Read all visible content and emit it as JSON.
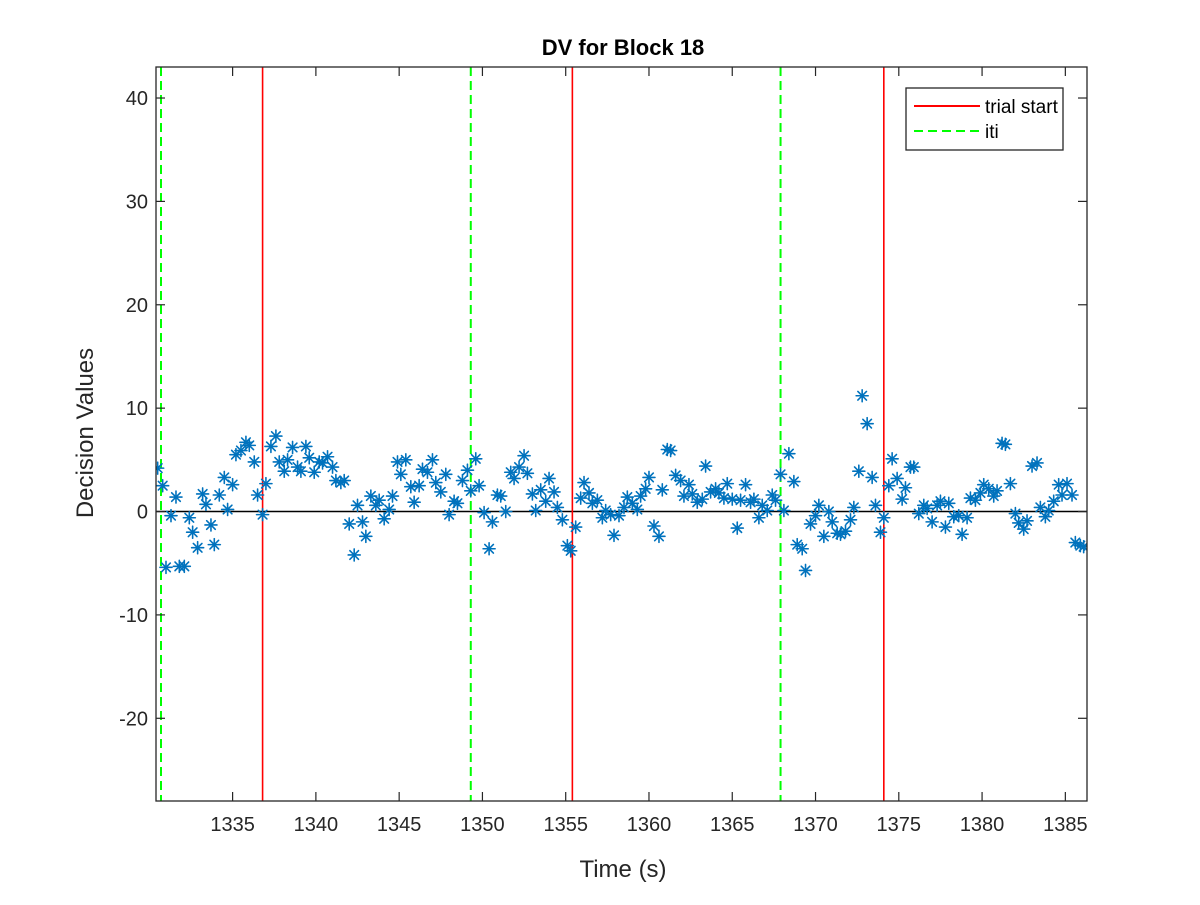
{
  "chart_data": {
    "type": "scatter",
    "title": "DV for Block 18",
    "xlabel": "Time (s)",
    "ylabel": "Decision Values",
    "xlim": [
      1330.4,
      1386.3
    ],
    "ylim": [
      -28,
      43
    ],
    "xticks": [
      1335,
      1340,
      1345,
      1350,
      1355,
      1360,
      1365,
      1370,
      1375,
      1380,
      1385
    ],
    "yticks": [
      -20,
      -10,
      0,
      10,
      20,
      30,
      40
    ],
    "grid": false,
    "legend_position": "top-right",
    "zero_line": 0,
    "colors": {
      "points": "#0072BD",
      "trial_start": "#ff0000",
      "iti": "#00ff00",
      "zero_line": "#000000"
    },
    "legend": [
      {
        "label": "trial start",
        "style": "solid",
        "color": "#ff0000"
      },
      {
        "label": "iti",
        "style": "dashed",
        "color": "#00ff00"
      }
    ],
    "trial_start_times": [
      1336.8,
      1355.4,
      1374.1
    ],
    "iti_times": [
      1330.7,
      1349.3,
      1367.9
    ],
    "series": [
      {
        "marker": "asterisk",
        "points": [
          [
            1330.5,
            4.2
          ],
          [
            1330.8,
            2.5
          ],
          [
            1331.0,
            -5.4
          ],
          [
            1331.3,
            -0.4
          ],
          [
            1331.6,
            1.4
          ],
          [
            1331.8,
            -5.3
          ],
          [
            1332.1,
            -5.3
          ],
          [
            1332.4,
            -0.6
          ],
          [
            1332.6,
            -2.0
          ],
          [
            1332.9,
            -3.5
          ],
          [
            1333.2,
            1.7
          ],
          [
            1333.4,
            0.7
          ],
          [
            1333.7,
            -1.3
          ],
          [
            1333.9,
            -3.2
          ],
          [
            1334.2,
            1.6
          ],
          [
            1334.5,
            3.3
          ],
          [
            1334.7,
            0.2
          ],
          [
            1335.0,
            2.6
          ],
          [
            1335.2,
            5.5
          ],
          [
            1335.5,
            5.9
          ],
          [
            1335.8,
            6.7
          ],
          [
            1336.0,
            6.4
          ],
          [
            1336.3,
            4.8
          ],
          [
            1336.5,
            1.6
          ],
          [
            1336.8,
            -0.3
          ],
          [
            1337.0,
            2.7
          ],
          [
            1337.3,
            6.3
          ],
          [
            1337.6,
            7.3
          ],
          [
            1337.8,
            4.8
          ],
          [
            1338.1,
            3.9
          ],
          [
            1338.3,
            5.0
          ],
          [
            1338.6,
            6.2
          ],
          [
            1338.9,
            4.3
          ],
          [
            1339.1,
            3.9
          ],
          [
            1339.4,
            6.3
          ],
          [
            1339.6,
            5.2
          ],
          [
            1339.9,
            3.8
          ],
          [
            1340.2,
            4.8
          ],
          [
            1340.4,
            4.7
          ],
          [
            1340.7,
            5.3
          ],
          [
            1341.0,
            4.3
          ],
          [
            1341.2,
            3.0
          ],
          [
            1341.5,
            2.8
          ],
          [
            1341.7,
            3.0
          ],
          [
            1342.0,
            -1.2
          ],
          [
            1342.3,
            -4.2
          ],
          [
            1342.5,
            0.6
          ],
          [
            1342.8,
            -1.0
          ],
          [
            1343.0,
            -2.4
          ],
          [
            1343.3,
            1.5
          ],
          [
            1343.6,
            0.6
          ],
          [
            1343.8,
            1.1
          ],
          [
            1344.1,
            -0.7
          ],
          [
            1344.4,
            0.2
          ],
          [
            1344.6,
            1.5
          ],
          [
            1344.9,
            4.8
          ],
          [
            1345.1,
            3.6
          ],
          [
            1345.4,
            5.0
          ],
          [
            1345.7,
            2.4
          ],
          [
            1345.9,
            0.9
          ],
          [
            1346.2,
            2.5
          ],
          [
            1346.4,
            4.1
          ],
          [
            1346.7,
            3.8
          ],
          [
            1347.0,
            5.0
          ],
          [
            1347.2,
            2.8
          ],
          [
            1347.5,
            1.9
          ],
          [
            1347.8,
            3.6
          ],
          [
            1348.0,
            -0.3
          ],
          [
            1348.3,
            1.0
          ],
          [
            1348.5,
            0.8
          ],
          [
            1348.8,
            3.0
          ],
          [
            1349.1,
            4.0
          ],
          [
            1349.3,
            2.0
          ],
          [
            1349.6,
            5.1
          ],
          [
            1349.8,
            2.5
          ],
          [
            1350.1,
            -0.1
          ],
          [
            1350.4,
            -3.6
          ],
          [
            1350.6,
            -1.0
          ],
          [
            1350.9,
            1.6
          ],
          [
            1351.1,
            1.5
          ],
          [
            1351.4,
            0.0
          ],
          [
            1351.7,
            3.8
          ],
          [
            1351.9,
            3.2
          ],
          [
            1352.2,
            4.3
          ],
          [
            1352.5,
            5.4
          ],
          [
            1352.7,
            3.7
          ],
          [
            1353.0,
            1.7
          ],
          [
            1353.2,
            0.1
          ],
          [
            1353.5,
            2.1
          ],
          [
            1353.8,
            1.0
          ],
          [
            1354.0,
            3.2
          ],
          [
            1354.3,
            1.9
          ],
          [
            1354.5,
            0.4
          ],
          [
            1354.8,
            -0.8
          ],
          [
            1355.1,
            -3.3
          ],
          [
            1355.3,
            -3.8
          ],
          [
            1355.6,
            -1.5
          ],
          [
            1355.9,
            1.3
          ],
          [
            1356.1,
            2.8
          ],
          [
            1356.4,
            1.8
          ],
          [
            1356.6,
            0.8
          ],
          [
            1356.9,
            1.1
          ],
          [
            1357.2,
            -0.6
          ],
          [
            1357.4,
            0.1
          ],
          [
            1357.7,
            -0.3
          ],
          [
            1357.9,
            -2.3
          ],
          [
            1358.2,
            -0.4
          ],
          [
            1358.5,
            0.4
          ],
          [
            1358.7,
            1.4
          ],
          [
            1359.0,
            0.8
          ],
          [
            1359.3,
            0.2
          ],
          [
            1359.5,
            1.5
          ],
          [
            1359.8,
            2.2
          ],
          [
            1360.0,
            3.3
          ],
          [
            1360.3,
            -1.4
          ],
          [
            1360.6,
            -2.4
          ],
          [
            1360.8,
            2.1
          ],
          [
            1361.1,
            6.0
          ],
          [
            1361.3,
            5.9
          ],
          [
            1361.6,
            3.5
          ],
          [
            1361.9,
            3.0
          ],
          [
            1362.1,
            1.5
          ],
          [
            1362.4,
            2.6
          ],
          [
            1362.6,
            1.7
          ],
          [
            1362.9,
            0.9
          ],
          [
            1363.2,
            1.2
          ],
          [
            1363.4,
            4.4
          ],
          [
            1363.7,
            1.9
          ],
          [
            1364.0,
            2.2
          ],
          [
            1364.2,
            1.8
          ],
          [
            1364.5,
            1.3
          ],
          [
            1364.7,
            2.7
          ],
          [
            1365.0,
            1.2
          ],
          [
            1365.3,
            -1.6
          ],
          [
            1365.5,
            1.1
          ],
          [
            1365.8,
            2.6
          ],
          [
            1366.1,
            0.9
          ],
          [
            1366.3,
            1.2
          ],
          [
            1366.6,
            -0.6
          ],
          [
            1366.8,
            0.6
          ],
          [
            1367.1,
            0.1
          ],
          [
            1367.4,
            1.6
          ],
          [
            1367.6,
            1.1
          ],
          [
            1367.9,
            3.6
          ],
          [
            1368.1,
            0.1
          ],
          [
            1368.4,
            5.6
          ],
          [
            1368.7,
            2.9
          ],
          [
            1368.9,
            -3.2
          ],
          [
            1369.2,
            -3.6
          ],
          [
            1369.4,
            -5.7
          ],
          [
            1369.7,
            -1.2
          ],
          [
            1370.0,
            -0.4
          ],
          [
            1370.2,
            0.6
          ],
          [
            1370.5,
            -2.4
          ],
          [
            1370.8,
            0.0
          ],
          [
            1371.0,
            -1.0
          ],
          [
            1371.3,
            -2.1
          ],
          [
            1371.5,
            -2.2
          ],
          [
            1371.8,
            -1.9
          ],
          [
            1372.1,
            -0.8
          ],
          [
            1372.3,
            0.4
          ],
          [
            1372.6,
            3.9
          ],
          [
            1372.8,
            11.2
          ],
          [
            1373.1,
            8.5
          ],
          [
            1373.4,
            3.3
          ],
          [
            1373.6,
            0.6
          ],
          [
            1373.9,
            -2.0
          ],
          [
            1374.1,
            -0.6
          ],
          [
            1374.4,
            2.5
          ],
          [
            1374.6,
            5.1
          ],
          [
            1374.9,
            3.2
          ],
          [
            1375.2,
            1.2
          ],
          [
            1375.4,
            2.3
          ],
          [
            1375.7,
            4.3
          ],
          [
            1375.9,
            4.3
          ],
          [
            1376.2,
            -0.2
          ],
          [
            1376.5,
            0.6
          ],
          [
            1376.7,
            0.3
          ],
          [
            1377.0,
            -1.0
          ],
          [
            1377.3,
            0.6
          ],
          [
            1377.5,
            1.0
          ],
          [
            1377.8,
            -1.5
          ],
          [
            1378.0,
            0.8
          ],
          [
            1378.3,
            -0.5
          ],
          [
            1378.6,
            -0.4
          ],
          [
            1378.8,
            -2.2
          ],
          [
            1379.1,
            -0.6
          ],
          [
            1379.3,
            1.3
          ],
          [
            1379.6,
            1.1
          ],
          [
            1379.9,
            1.8
          ],
          [
            1380.1,
            2.6
          ],
          [
            1380.4,
            2.2
          ],
          [
            1380.7,
            1.5
          ],
          [
            1380.9,
            2.0
          ],
          [
            1381.2,
            6.6
          ],
          [
            1381.4,
            6.5
          ],
          [
            1381.7,
            2.7
          ],
          [
            1382.0,
            -0.2
          ],
          [
            1382.2,
            -1.1
          ],
          [
            1382.5,
            -1.7
          ],
          [
            1382.7,
            -0.9
          ],
          [
            1383.0,
            4.4
          ],
          [
            1383.3,
            4.7
          ],
          [
            1383.5,
            0.4
          ],
          [
            1383.8,
            -0.5
          ],
          [
            1384.0,
            0.1
          ],
          [
            1384.3,
            1.0
          ],
          [
            1384.6,
            2.6
          ],
          [
            1384.8,
            1.6
          ],
          [
            1385.1,
            2.7
          ],
          [
            1385.4,
            1.6
          ],
          [
            1385.6,
            -3.0
          ],
          [
            1385.9,
            -3.3
          ],
          [
            1386.1,
            -3.4
          ]
        ]
      }
    ]
  }
}
